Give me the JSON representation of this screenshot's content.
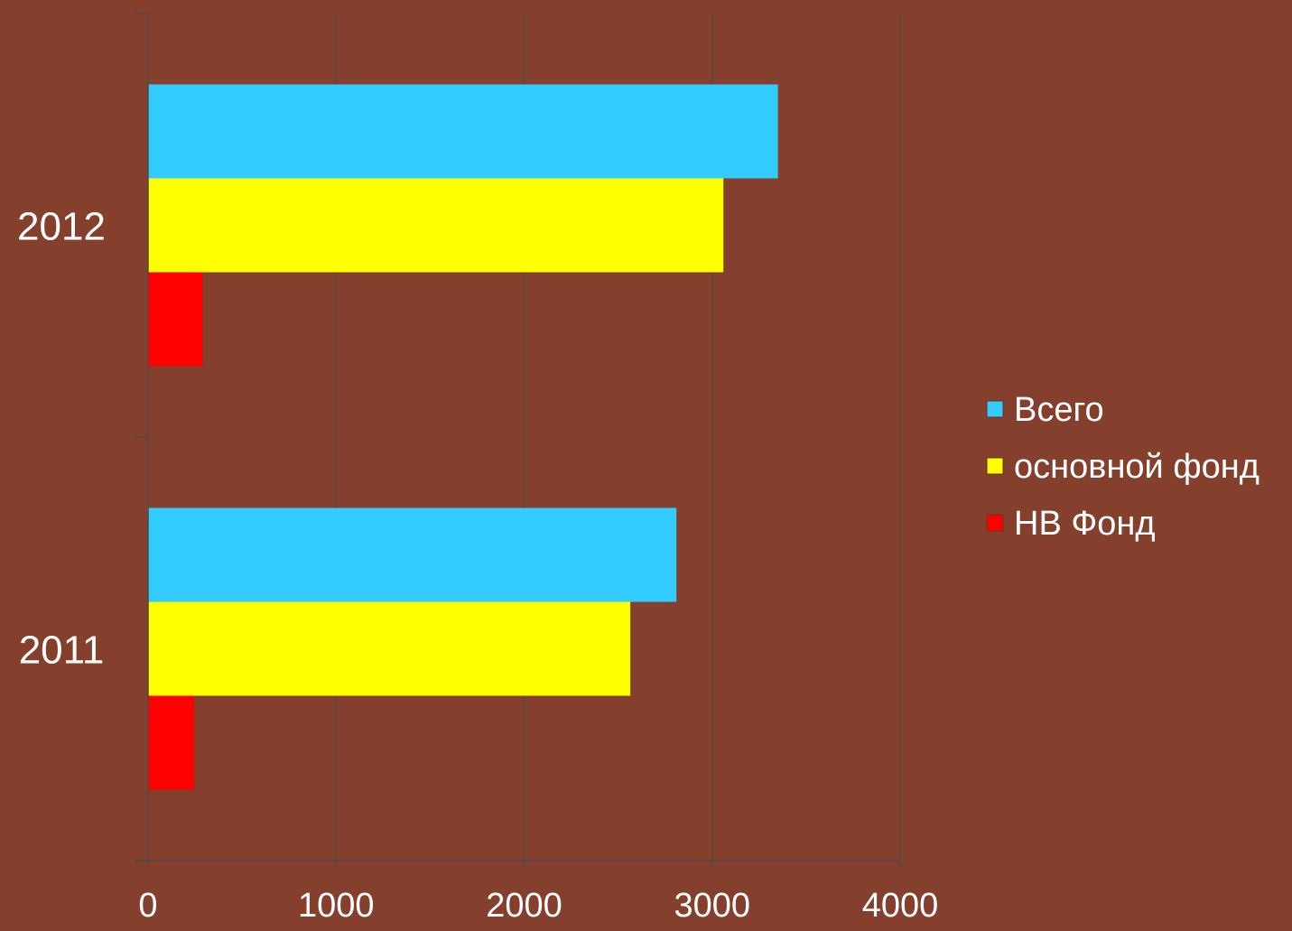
{
  "chart_data": {
    "type": "bar",
    "orientation": "horizontal",
    "categories": [
      "2012",
      "2011"
    ],
    "series": [
      {
        "name": "Всего",
        "color": "#33ccff",
        "values": [
          3350,
          2810
        ]
      },
      {
        "name": "основной  фонд",
        "color": "#ffff00",
        "values": [
          3060,
          2565
        ]
      },
      {
        "name": "НВ Фонд",
        "color": "#ff0000",
        "values": [
          290,
          245
        ]
      }
    ],
    "xlim": [
      0,
      4000
    ],
    "xticks": [
      "0",
      "1000",
      "2000",
      "3000",
      "4000"
    ],
    "grid": true,
    "legend": "right",
    "background_color": "#843f2d",
    "gridline_color": "#4a4a4a",
    "title": "",
    "xlabel": "",
    "ylabel": ""
  }
}
